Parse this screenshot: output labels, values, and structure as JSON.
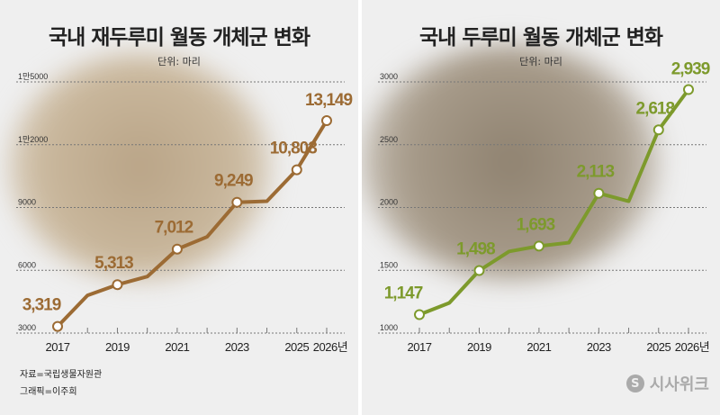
{
  "chart_data": [
    {
      "type": "line",
      "title": "국내 재두루미 월동 개체군 변화",
      "unit_label": "단위: 마리",
      "x": [
        2017,
        2018,
        2019,
        2020,
        2021,
        2022,
        2023,
        2024,
        2025,
        2026
      ],
      "x_tick_labels": [
        "2017",
        "2019",
        "2021",
        "2023",
        "2025",
        "2026년"
      ],
      "x_tick_years": [
        2017,
        2019,
        2021,
        2023,
        2025,
        2026
      ],
      "y": [
        3319,
        4800,
        5313,
        5700,
        7012,
        7600,
        9249,
        9300,
        10803,
        13149
      ],
      "data_labels": {
        "2017": "3,319",
        "2019": "5,313",
        "2021": "7,012",
        "2023": "9,249",
        "2025": "10,803",
        "2026": "13,149"
      },
      "y_ticks": [
        3000,
        6000,
        9000,
        12000,
        15000
      ],
      "y_tick_labels": [
        "3000",
        "6000",
        "9000",
        "1만2000",
        "1만5000"
      ],
      "ylim": [
        3000,
        15000
      ],
      "grid": true,
      "color": "#9c6b34"
    },
    {
      "type": "line",
      "title": "국내 두루미 월동 개체군 변화",
      "unit_label": "단위: 마리",
      "x": [
        2017,
        2018,
        2019,
        2020,
        2021,
        2022,
        2023,
        2024,
        2025,
        2026
      ],
      "x_tick_labels": [
        "2017",
        "2019",
        "2021",
        "2023",
        "2025",
        "2026년"
      ],
      "x_tick_years": [
        2017,
        2019,
        2021,
        2023,
        2025,
        2026
      ],
      "y": [
        1147,
        1240,
        1498,
        1650,
        1693,
        1720,
        2113,
        2050,
        2618,
        2939
      ],
      "data_labels": {
        "2017": "1,147",
        "2019": "1,498",
        "2021": "1,693",
        "2023": "2,113",
        "2025": "2,618",
        "2026": "2,939"
      },
      "y_ticks": [
        1000,
        1500,
        2000,
        2500,
        3000
      ],
      "y_tick_labels": [
        "1000",
        "1500",
        "2000",
        "2500",
        "3000"
      ],
      "ylim": [
        1000,
        3000
      ],
      "grid": true,
      "color": "#7d9a2c"
    }
  ],
  "footer": {
    "source": "자료=국립생물자원관",
    "graphic": "그래픽=이주희"
  },
  "logo": {
    "text": "시사위크",
    "mark": "S"
  }
}
